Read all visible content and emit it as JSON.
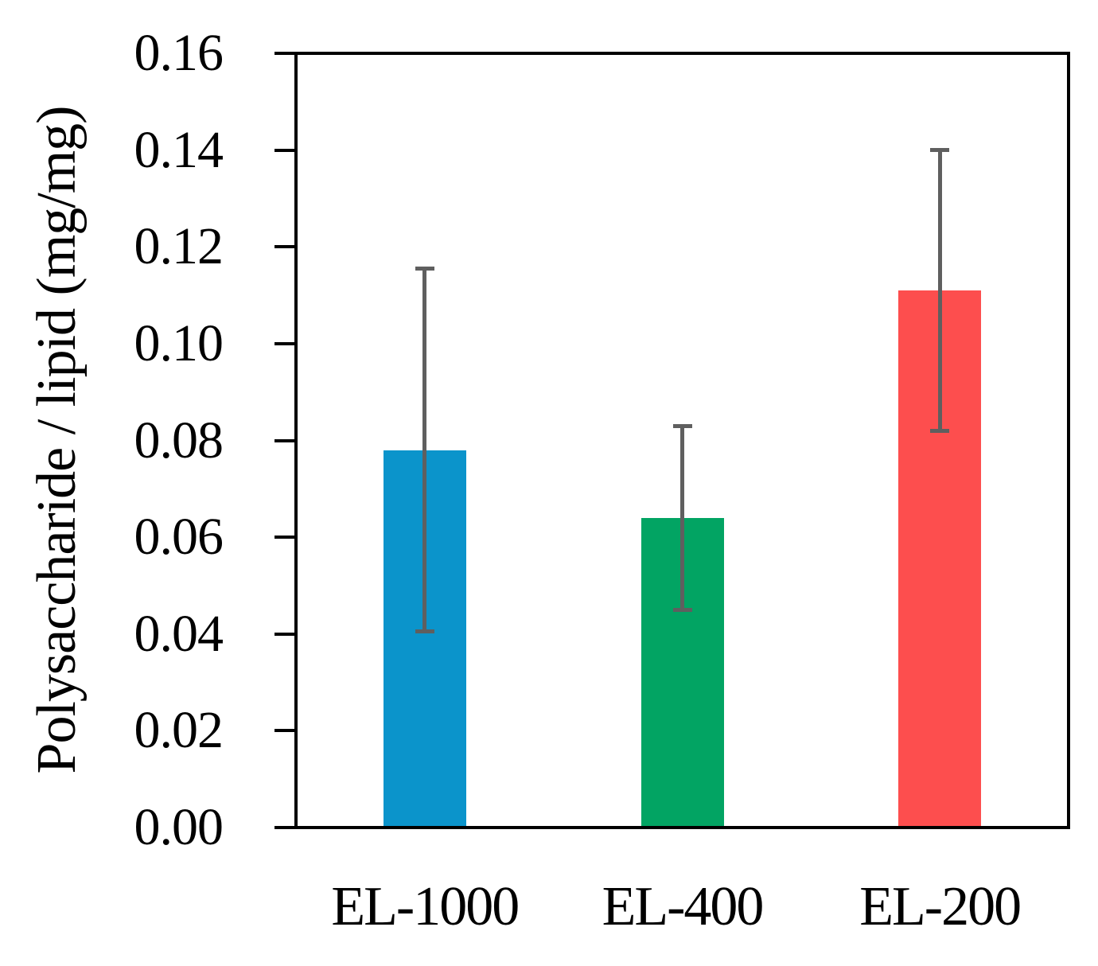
{
  "chart_data": {
    "type": "bar",
    "title": "",
    "xlabel": "",
    "ylabel": "Polysaccharide / lipid (mg/mg)",
    "categories": [
      "EL-1000",
      "EL-400",
      "EL-200"
    ],
    "values": [
      0.078,
      0.064,
      0.111
    ],
    "errors": [
      0.0375,
      0.019,
      0.029
    ],
    "bar_colors": [
      "#0b94cb",
      "#02a463",
      "#fd4e4e"
    ],
    "error_bar_color": "#5f5f5f",
    "axis_color": "#000000",
    "ylim": [
      0.0,
      0.16
    ],
    "ytick_step": 0.02,
    "ytick_labels": [
      "0.00",
      "0.02",
      "0.04",
      "0.06",
      "0.08",
      "0.10",
      "0.12",
      "0.14",
      "0.16"
    ],
    "grid": "off",
    "legend": "none",
    "error_bars": "vertical, symmetric, with caps"
  }
}
